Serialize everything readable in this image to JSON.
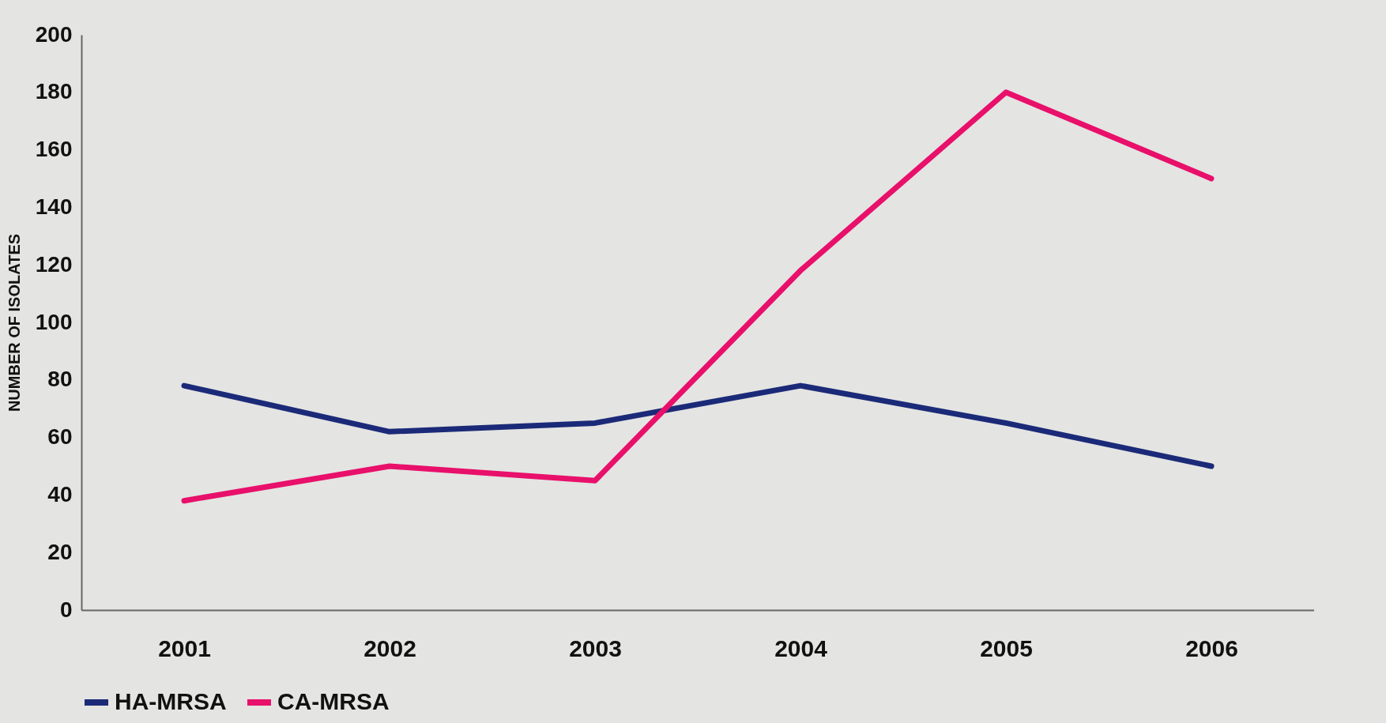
{
  "chart_data": {
    "type": "line",
    "ylabel": "NUMBER OF ISOLATES",
    "categories": [
      "2001",
      "2002",
      "2003",
      "2004",
      "2005",
      "2006"
    ],
    "series": [
      {
        "name": "HA-MRSA",
        "color": "#1b2a78",
        "values": [
          78,
          62,
          65,
          78,
          65,
          50
        ]
      },
      {
        "name": "CA-MRSA",
        "color": "#e8106a",
        "values": [
          38,
          50,
          45,
          118,
          180,
          150
        ]
      }
    ],
    "ylim": [
      0,
      200
    ],
    "yticks": [
      0,
      20,
      40,
      60,
      80,
      100,
      120,
      140,
      160,
      180,
      200
    ],
    "grid": false,
    "legend": "bottom",
    "line_style": "solid"
  }
}
